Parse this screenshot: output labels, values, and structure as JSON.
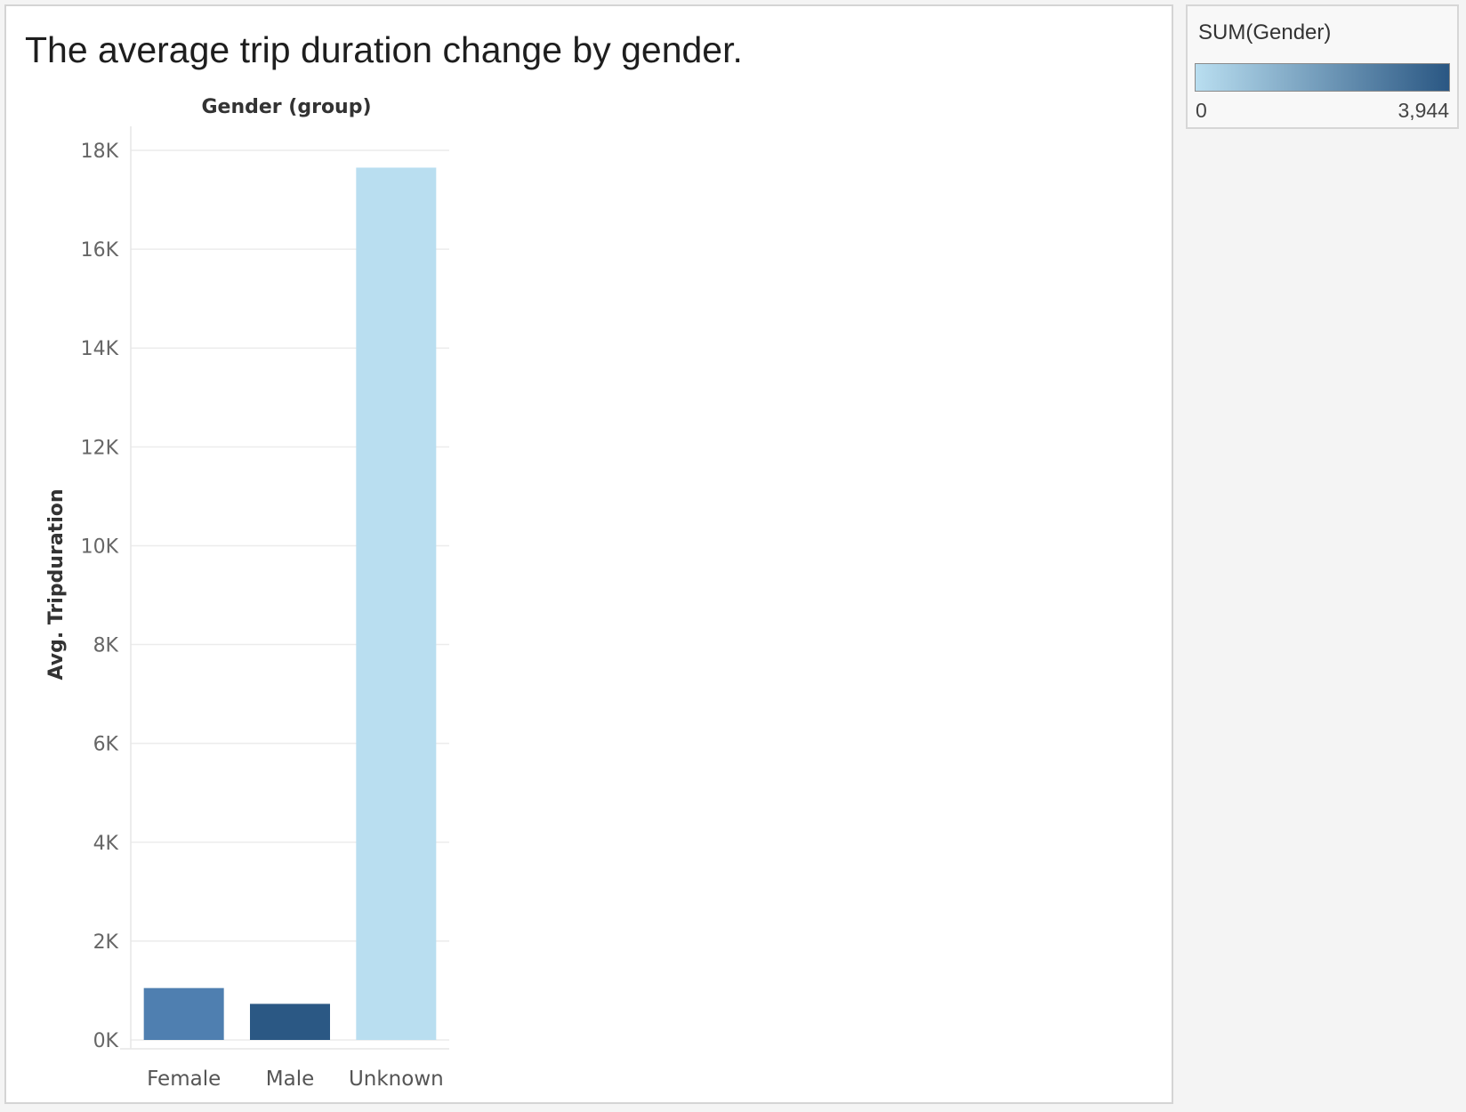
{
  "title": "The average trip duration change by gender.",
  "legend": {
    "title": "SUM(Gender)",
    "min_label": "0",
    "max_label": "3,944",
    "color_low": "#b9def0",
    "color_high": "#2a5783"
  },
  "chart_data": {
    "type": "bar",
    "title": "The average trip duration change by gender.",
    "column_header": "Gender (group)",
    "xlabel": "",
    "ylabel": "Avg. Tripduration",
    "categories": [
      "Female",
      "Male",
      "Unknown"
    ],
    "values": [
      1050,
      730,
      17650
    ],
    "colors": [
      "#4f7fb0",
      "#2b5884",
      "#b9def0"
    ],
    "ylim": [
      0,
      18000
    ],
    "yticks": [
      0,
      2000,
      4000,
      6000,
      8000,
      10000,
      12000,
      14000,
      16000,
      18000
    ],
    "ytick_labels": [
      "0K",
      "2K",
      "4K",
      "6K",
      "8K",
      "10K",
      "12K",
      "14K",
      "16K",
      "18K"
    ],
    "grid": true,
    "legend_position": "top-right"
  }
}
